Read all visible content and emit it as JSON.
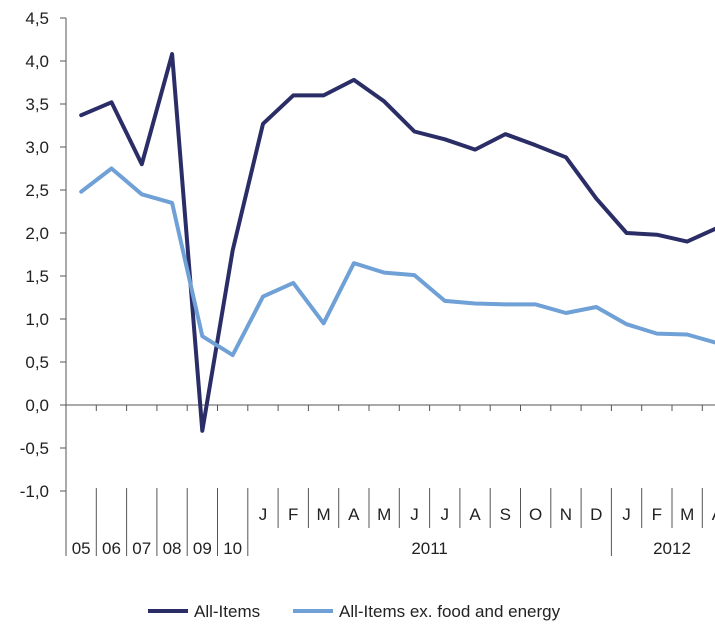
{
  "chart_data": {
    "type": "line",
    "title": "",
    "xlabel": "",
    "ylabel": "",
    "ylim": [
      -1.0,
      4.5
    ],
    "yticks": [
      "-1,0",
      "-0,5",
      "0,0",
      "0,5",
      "1,0",
      "1,5",
      "2,0",
      "2,5",
      "3,0",
      "3,5",
      "4,0",
      "4,5"
    ],
    "ytick_values": [
      -1.0,
      -0.5,
      0.0,
      0.5,
      1.0,
      1.5,
      2.0,
      2.5,
      3.0,
      3.5,
      4.0,
      4.5
    ],
    "categories": [
      "05",
      "06",
      "07",
      "08",
      "09",
      "10",
      "J",
      "F",
      "M",
      "A",
      "M",
      "J",
      "J",
      "A",
      "S",
      "O",
      "N",
      "D",
      "J",
      "F",
      "M",
      "A"
    ],
    "year_groups": [
      {
        "label": "2011",
        "start": 6,
        "end": 17
      },
      {
        "label": "2012",
        "start": 18,
        "end": 21
      }
    ],
    "grid": false,
    "legend_position": "bottom",
    "series": [
      {
        "name": "All-Items",
        "color": "#2b2d66",
        "values": [
          3.37,
          3.52,
          2.8,
          4.08,
          -0.3,
          1.8,
          3.27,
          3.6,
          3.6,
          3.78,
          3.53,
          3.18,
          3.09,
          2.97,
          3.15,
          3.02,
          2.88,
          2.4,
          2.0,
          1.98,
          1.9,
          2.06
        ]
      },
      {
        "name": "All-Items ex. food and energy",
        "color": "#6fa0d6",
        "values": [
          2.48,
          2.75,
          2.45,
          2.35,
          0.8,
          0.58,
          1.26,
          1.42,
          0.95,
          1.65,
          1.54,
          1.51,
          1.21,
          1.18,
          1.17,
          1.17,
          1.07,
          1.14,
          0.94,
          0.83,
          0.82,
          0.72
        ]
      }
    ]
  }
}
